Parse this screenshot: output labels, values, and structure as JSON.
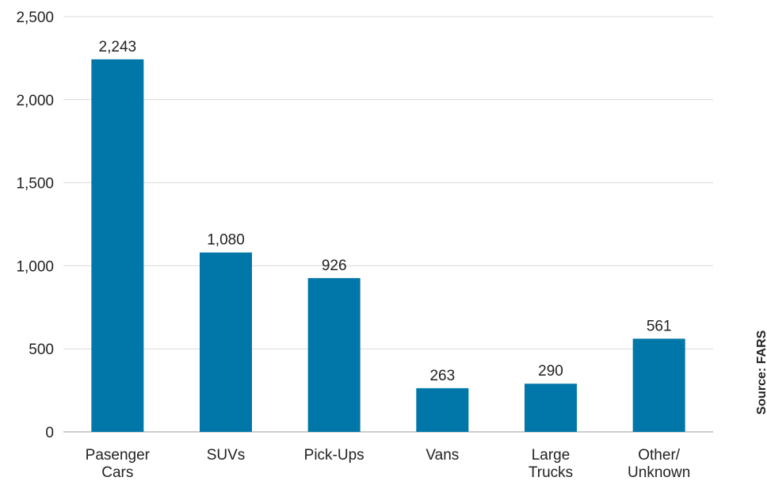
{
  "chart_data": {
    "type": "bar",
    "categories": [
      [
        "Pasenger",
        "Cars"
      ],
      [
        "SUVs"
      ],
      [
        "Pick-Ups"
      ],
      [
        "Vans"
      ],
      [
        "Large",
        "Trucks"
      ],
      [
        "Other/",
        "Unknown"
      ]
    ],
    "values": [
      2243,
      1080,
      926,
      263,
      290,
      561
    ],
    "value_labels": [
      "2,243",
      "1,080",
      "926",
      "263",
      "290",
      "561"
    ],
    "yticks": [
      "0",
      "500",
      "1,000",
      "1,500",
      "2,000",
      "2,500"
    ],
    "ylim": [
      0,
      2500
    ],
    "grid": true,
    "bar_color": "#0077a8",
    "grid_color": "#d9d9d9",
    "source": "Source: FARS"
  }
}
